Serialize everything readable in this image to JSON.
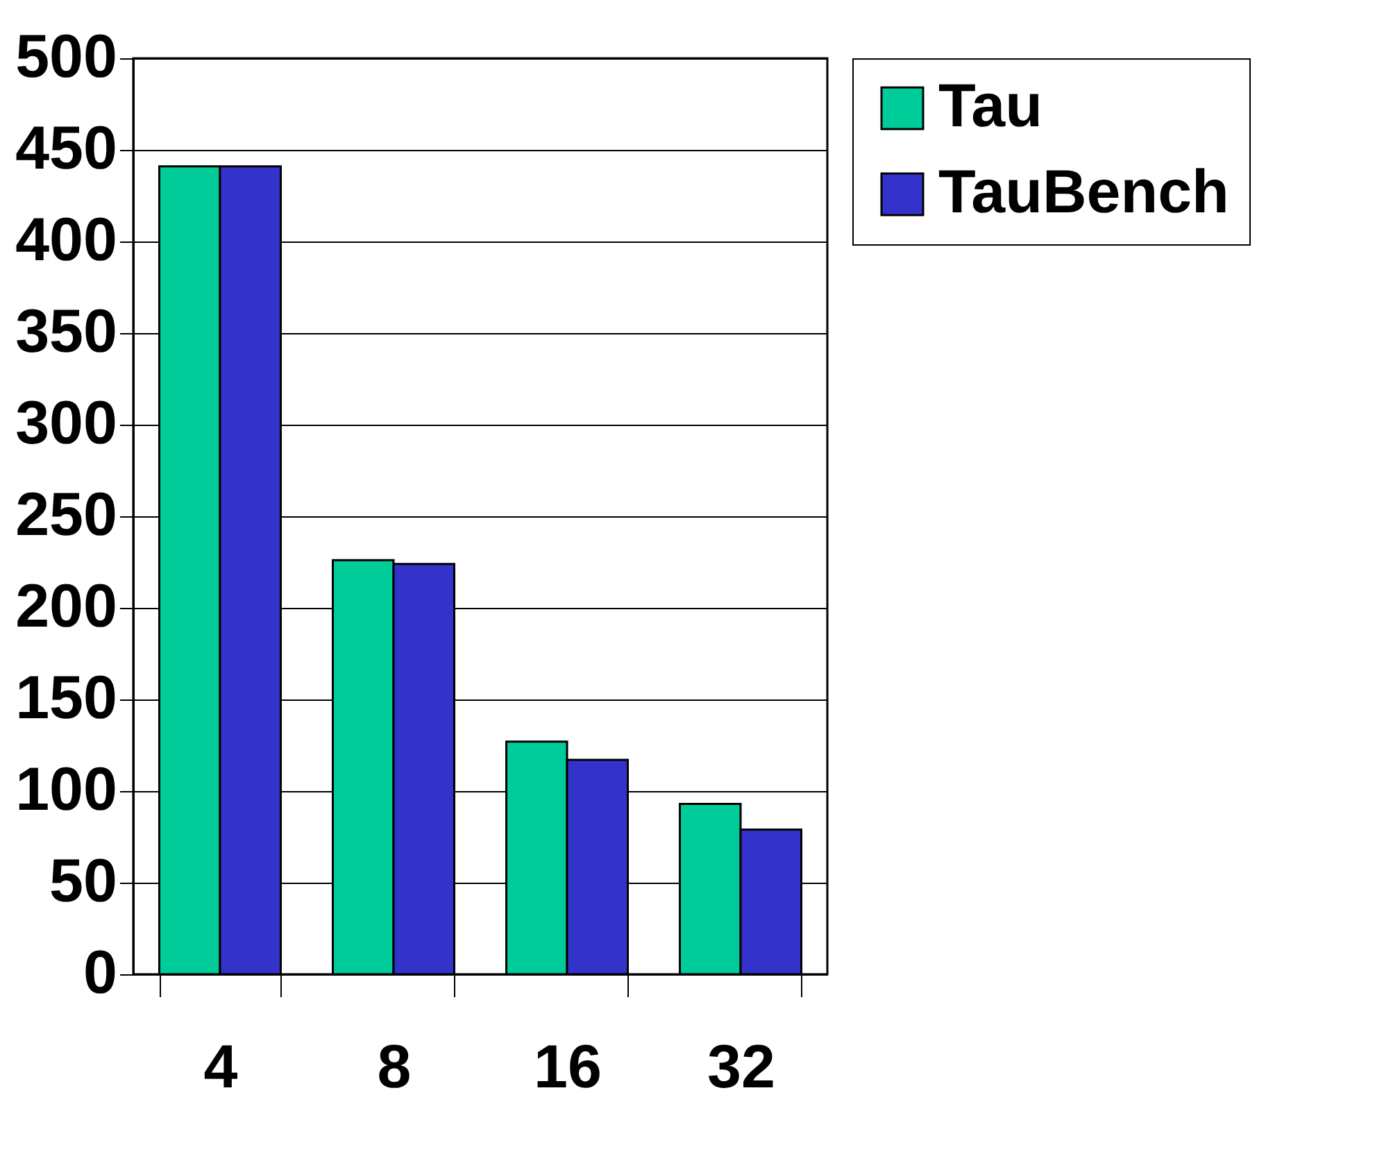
{
  "chart_data": {
    "type": "bar",
    "categories": [
      "4",
      "8",
      "16",
      "32"
    ],
    "series": [
      {
        "name": "Tau",
        "color": "#00cc99",
        "values": [
          441,
          226,
          127,
          93
        ]
      },
      {
        "name": "TauBench",
        "color": "#3333cc",
        "values": [
          441,
          224,
          117,
          79
        ]
      }
    ],
    "ylim": [
      0,
      500
    ],
    "yticks": [
      0,
      50,
      100,
      150,
      200,
      250,
      300,
      350,
      400,
      450,
      500
    ],
    "grid": "y",
    "legend": "right"
  }
}
